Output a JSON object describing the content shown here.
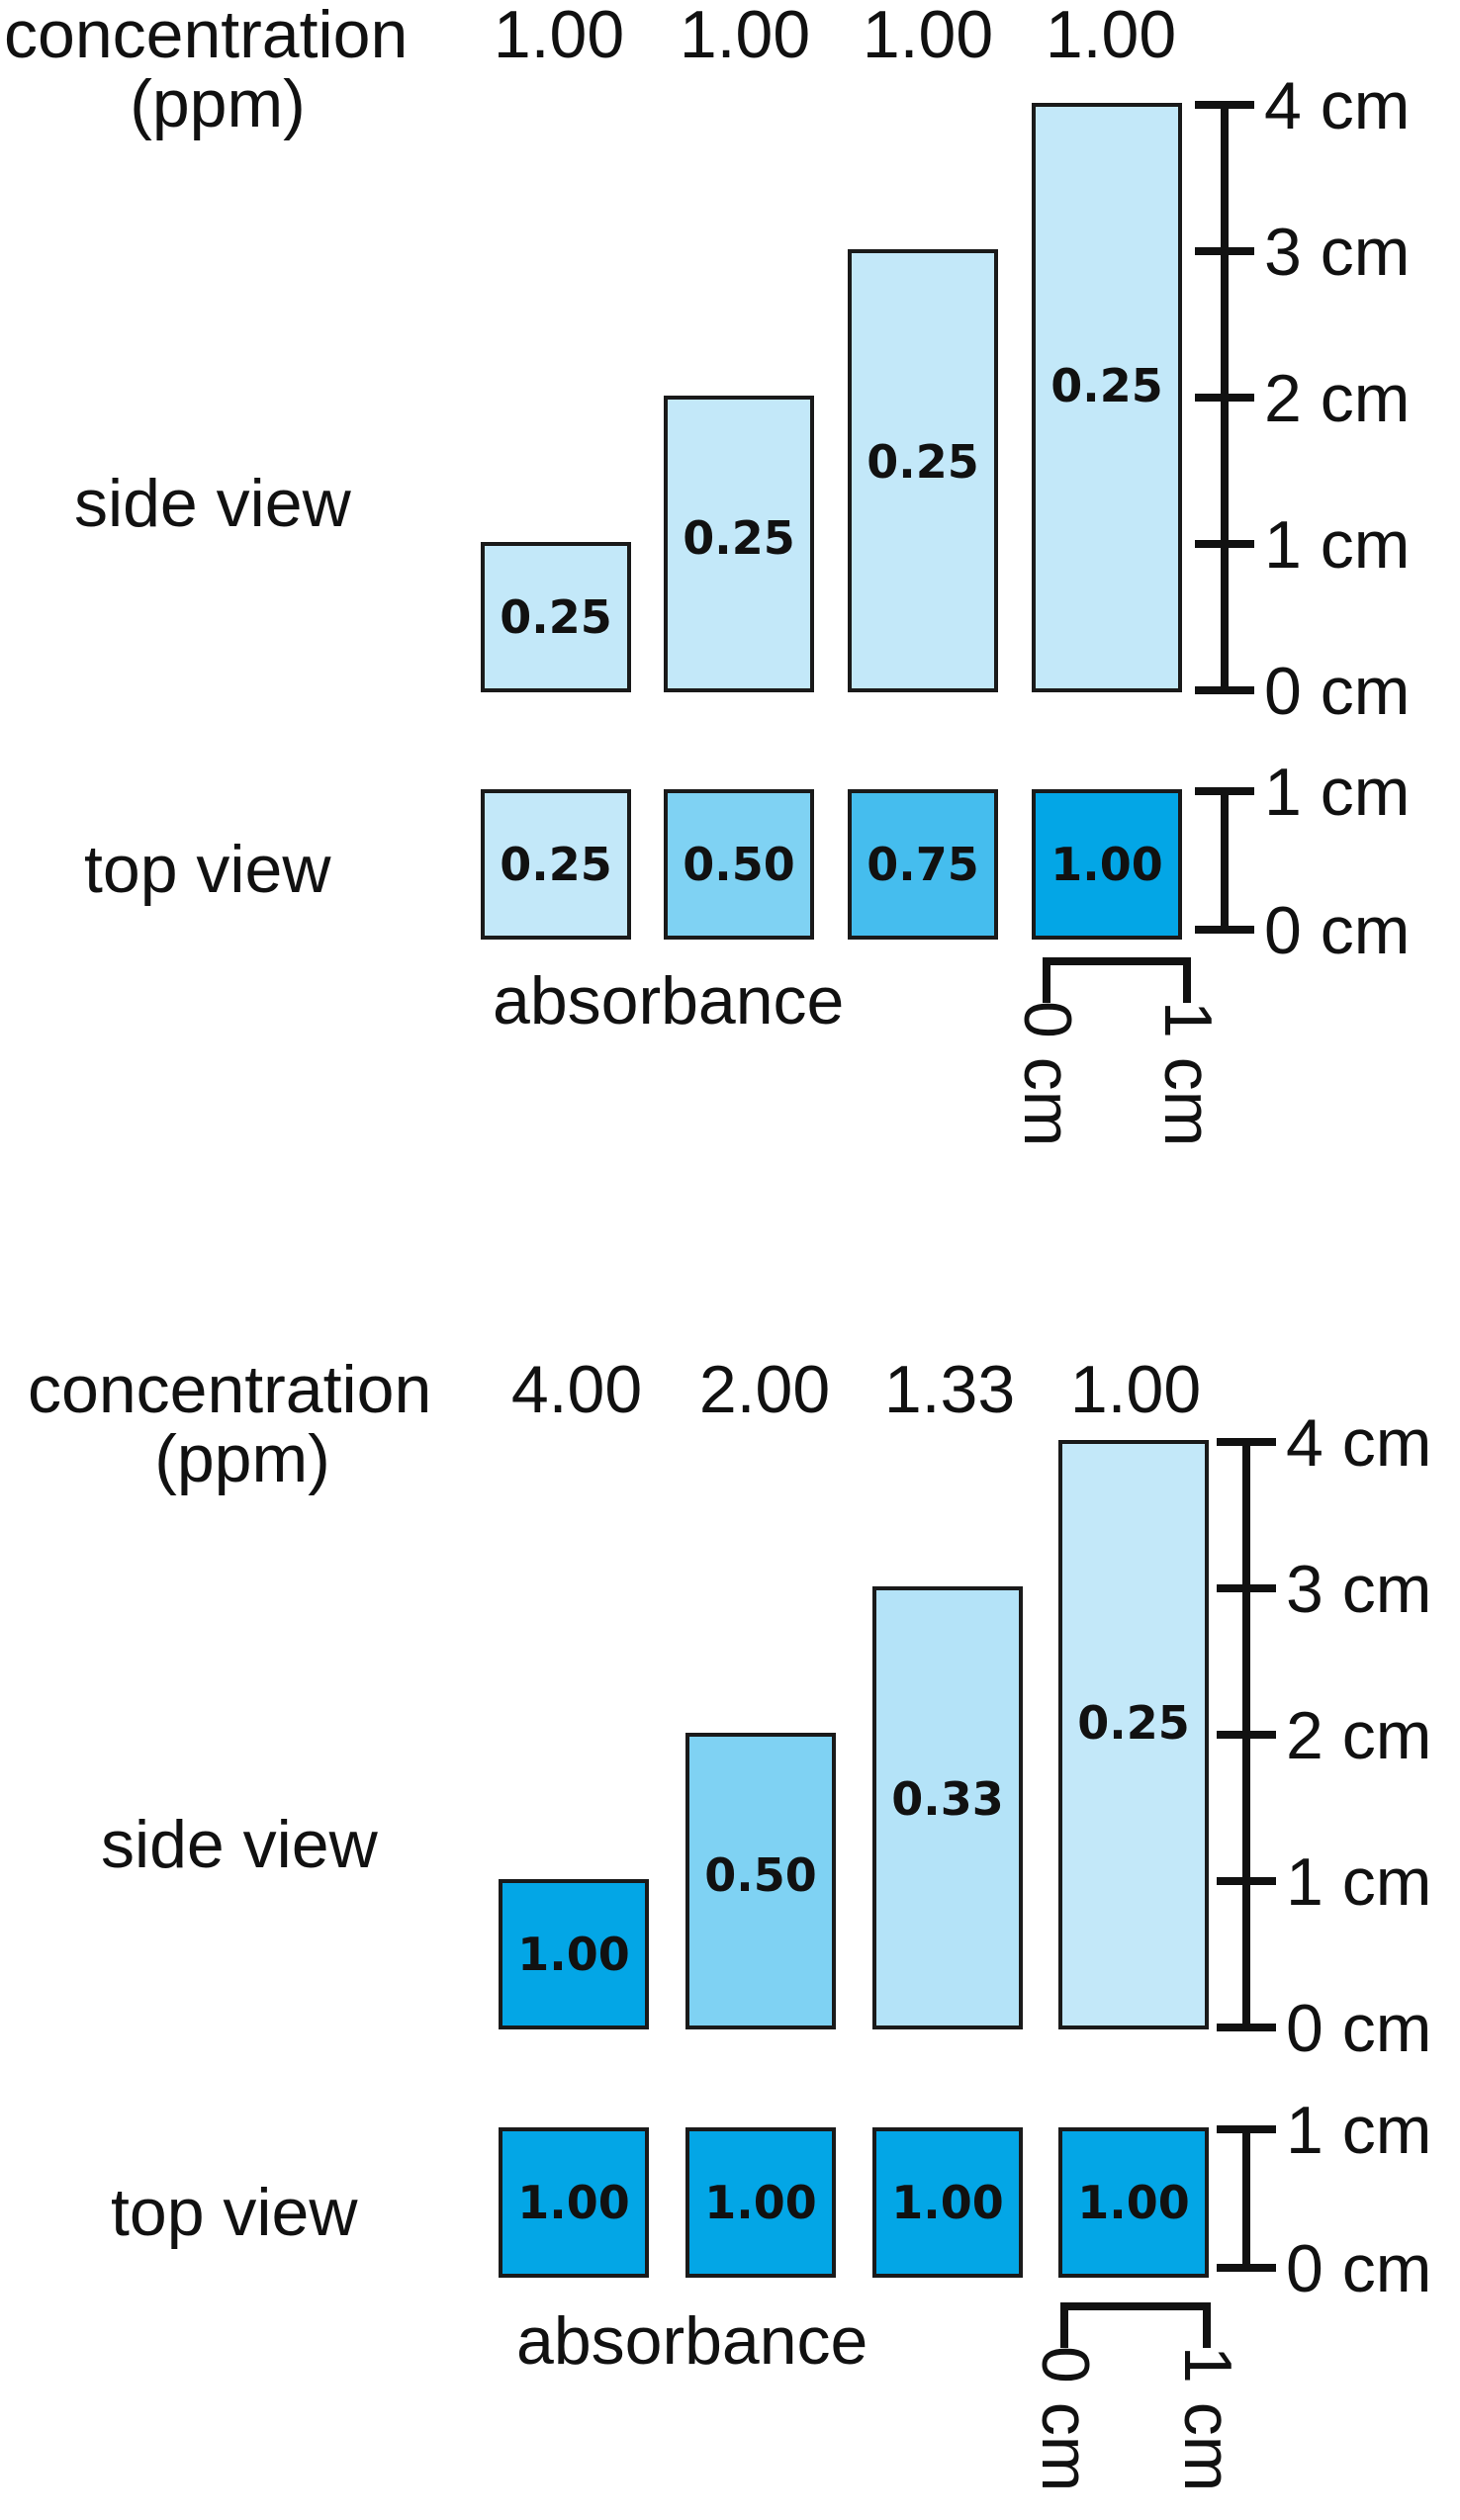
{
  "panels": [
    {
      "concentration_label": "concentration",
      "concentration_unit": "(ppm)",
      "concentrations": [
        "1.00",
        "1.00",
        "1.00",
        "1.00"
      ],
      "side_view_label": "side view",
      "top_view_label": "top view",
      "absorbance_label": "absorbance",
      "side_heights_cm": [
        1,
        2,
        3,
        4
      ],
      "side_values": [
        "0.25",
        "0.25",
        "0.25",
        "0.25"
      ],
      "top_values": [
        "0.25",
        "0.50",
        "0.75",
        "1.00"
      ],
      "side_colors": [
        "#c3e8f9",
        "#c3e8f9",
        "#c3e8f9",
        "#c3e8f9"
      ],
      "top_colors": [
        "#c3e8f9",
        "#7fd2f3",
        "#45bdee",
        "#03a6e6"
      ],
      "vertical_scale_labels": [
        "0 cm",
        "1 cm",
        "2 cm",
        "3 cm",
        "4 cm"
      ],
      "top_scale_labels": [
        "0 cm",
        "1 cm"
      ],
      "horizontal_scale_labels": [
        "0 cm",
        "1 cm"
      ]
    },
    {
      "concentration_label": "concentration",
      "concentration_unit": "(ppm)",
      "concentrations": [
        "4.00",
        "2.00",
        "1.33",
        "1.00"
      ],
      "side_view_label": "side view",
      "top_view_label": "top view",
      "absorbance_label": "absorbance",
      "side_heights_cm": [
        1,
        2,
        3,
        4
      ],
      "side_values": [
        "1.00",
        "0.50",
        "0.33",
        "0.25"
      ],
      "top_values": [
        "1.00",
        "1.00",
        "1.00",
        "1.00"
      ],
      "side_colors": [
        "#03a6e6",
        "#7fd2f3",
        "#b4e3f8",
        "#c3e8f9"
      ],
      "top_colors": [
        "#03a6e6",
        "#03a6e6",
        "#03a6e6",
        "#03a6e6"
      ],
      "vertical_scale_labels": [
        "0 cm",
        "1 cm",
        "2 cm",
        "3 cm",
        "4 cm"
      ],
      "top_scale_labels": [
        "0 cm",
        "1 cm"
      ],
      "horizontal_scale_labels": [
        "0 cm",
        "1 cm"
      ]
    }
  ]
}
